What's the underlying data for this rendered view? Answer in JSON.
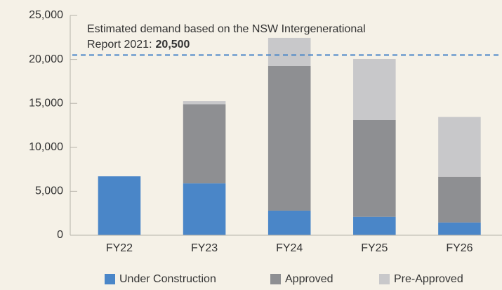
{
  "chart_data": {
    "type": "stacked-bar",
    "categories": [
      "FY22",
      "FY23",
      "FY24",
      "FY25",
      "FY26"
    ],
    "series": [
      {
        "name": "Under Construction",
        "color": "#4a86c8",
        "values": [
          6700,
          5900,
          2800,
          2100,
          1450
        ]
      },
      {
        "name": "Approved",
        "color": "#8e8f92",
        "values": [
          0,
          9000,
          16450,
          11000,
          5200
        ]
      },
      {
        "name": "Pre-Approved",
        "color": "#c8c8ca",
        "values": [
          0,
          350,
          3200,
          6950,
          6800
        ]
      }
    ],
    "ylim": [
      0,
      25000
    ],
    "yticks": [
      0,
      {
        "value": 5000,
        "label": "5,000"
      },
      {
        "value": 10000,
        "label": "10,000"
      },
      {
        "value": 15000,
        "label": "15,000"
      },
      {
        "value": 20000,
        "label": "20,000"
      },
      {
        "value": 25000,
        "label": "25,000"
      }
    ],
    "annotation": {
      "lines": [
        "Estimated demand based on the NSW Intergenerational",
        "Report 2021:"
      ],
      "value": 20500,
      "label": "20,500",
      "color": "#4a86c8"
    },
    "legend": "bottom"
  }
}
